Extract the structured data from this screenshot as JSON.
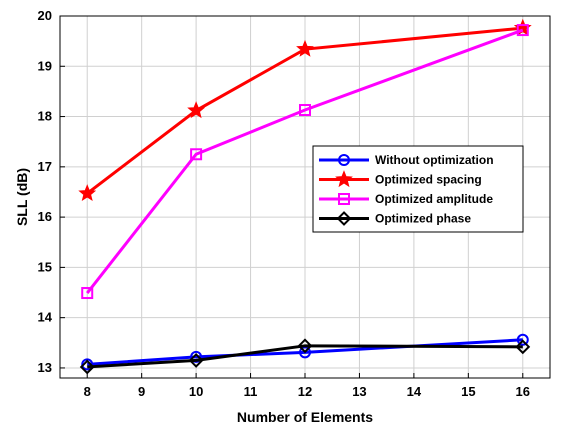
{
  "chart_data": {
    "type": "line",
    "title": "",
    "xlabel": "Number of Elements",
    "ylabel": "SLL (dB)",
    "xlim": [
      7.5,
      16.5
    ],
    "ylim": [
      12.8,
      20
    ],
    "x_ticks": [
      8,
      9,
      10,
      11,
      12,
      13,
      14,
      15,
      16
    ],
    "y_ticks": [
      13,
      14,
      15,
      16,
      17,
      18,
      19,
      20
    ],
    "grid": true,
    "legend_position": "center-right",
    "series": [
      {
        "name": "Without optimization",
        "color": "#0000ff",
        "marker": "circle",
        "x": [
          8,
          10,
          12,
          16
        ],
        "y": [
          13.07,
          13.22,
          13.31,
          13.56
        ]
      },
      {
        "name": "Optimized spacing",
        "color": "#ff0000",
        "marker": "star",
        "x": [
          8,
          10,
          12,
          16
        ],
        "y": [
          16.47,
          18.12,
          19.34,
          19.76
        ]
      },
      {
        "name": "Optimized amplitude",
        "color": "#ff00ff",
        "marker": "square",
        "x": [
          8,
          10,
          12,
          16
        ],
        "y": [
          14.49,
          17.25,
          18.13,
          19.72
        ]
      },
      {
        "name": "Optimized phase",
        "color": "#000000",
        "marker": "diamond",
        "x": [
          8,
          10,
          12,
          16
        ],
        "y": [
          13.02,
          13.15,
          13.44,
          13.42
        ]
      }
    ]
  }
}
